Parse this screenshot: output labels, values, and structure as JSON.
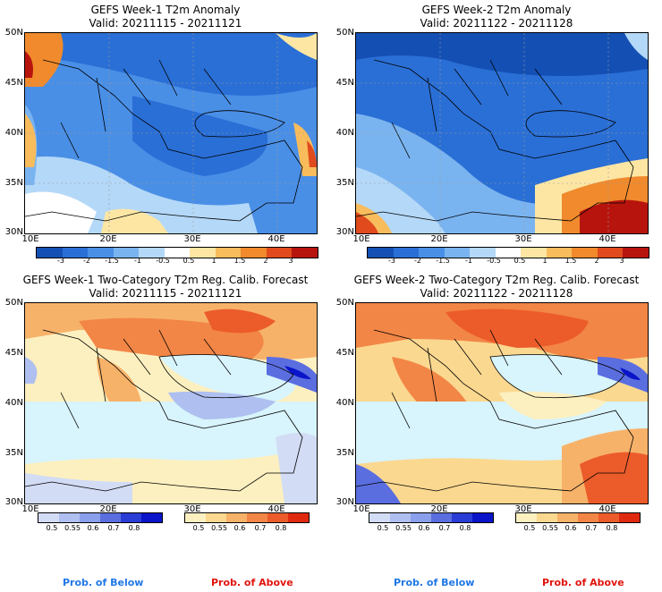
{
  "panels": [
    {
      "title1": "GEFS Week-1 T2m Anomaly",
      "title2": "Valid: 20211115 - 20211121"
    },
    {
      "title1": "GEFS Week-2 T2m Anomaly",
      "title2": "Valid: 20211122 - 20211128"
    },
    {
      "title1": "GEFS Week-1 Two-Category T2m Reg. Calib. Forecast",
      "title2": "Valid: 20211115 - 20211121"
    },
    {
      "title1": "GEFS Week-2 Two-Category T2m Reg. Calib. Forecast",
      "title2": "Valid: 20211122 - 20211128"
    }
  ],
  "lat_labels": [
    "50N",
    "45N",
    "40N",
    "35N",
    "30N"
  ],
  "lon_labels": [
    "10E",
    "20E",
    "30E",
    "40E"
  ],
  "anomaly_colorbar": {
    "labels": [
      "-3",
      "-2",
      "-1.5",
      "-1",
      "-0.5",
      "0.5",
      "1",
      "1.5",
      "2",
      "3"
    ],
    "colors": [
      "#1450b4",
      "#2a6fd6",
      "#4a8fe6",
      "#7ab4f0",
      "#b4d8f8",
      "#ffffff",
      "#fde6a4",
      "#f8bc5c",
      "#f08a2c",
      "#e04a1c",
      "#b8140e"
    ]
  },
  "prob_colorbar_below": {
    "labels": [
      "0.5",
      "0.55",
      "0.6",
      "0.7",
      "0.8"
    ],
    "colors": [
      "#d2dcf4",
      "#aebff0",
      "#8aa0ec",
      "#5a6ee0",
      "#2a3cd6",
      "#0a14c8"
    ]
  },
  "prob_colorbar_above": {
    "labels": [
      "0.5",
      "0.55",
      "0.6",
      "0.7",
      "0.8"
    ],
    "colors": [
      "#fdf0c0",
      "#fbd890",
      "#f7b26a",
      "#f28646",
      "#ec5c2a",
      "#e02a10"
    ]
  },
  "prob_labels": {
    "below": "Prob. of Below",
    "above": "Prob. of Above"
  },
  "colors": {
    "below": "#1f78e6",
    "above": "#e0140e",
    "sea": "#d8f4fc"
  }
}
